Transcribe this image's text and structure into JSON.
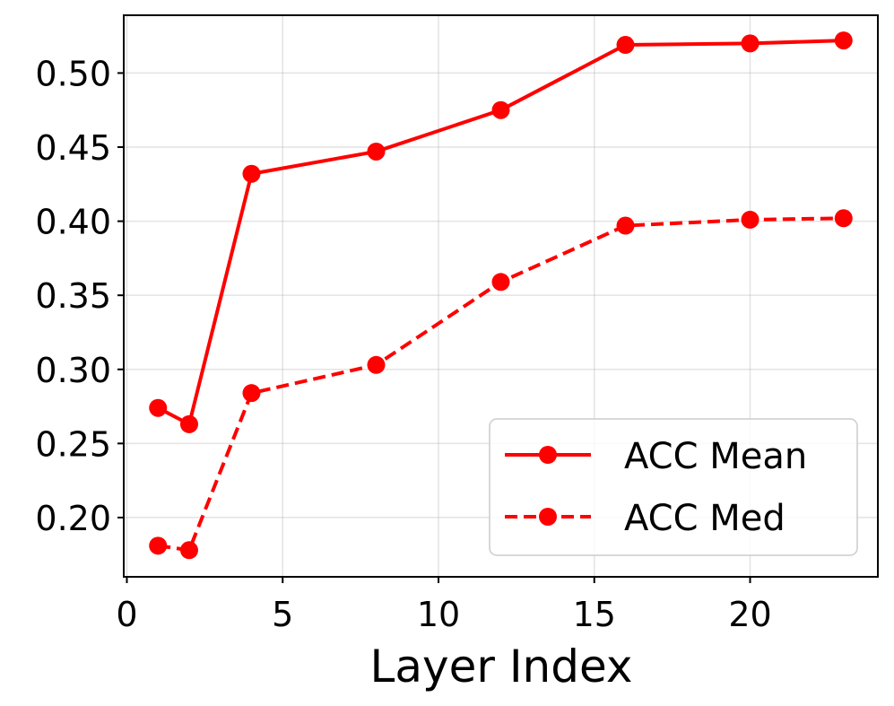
{
  "chart_data": {
    "type": "line",
    "title": "",
    "xlabel": "Layer Index",
    "ylabel": "",
    "xlim": [
      -0.1,
      24.1
    ],
    "ylim": [
      0.16,
      0.539
    ],
    "xticks": [
      0,
      5,
      10,
      15,
      20
    ],
    "xtick_labels": [
      "0",
      "5",
      "10",
      "15",
      "20"
    ],
    "yticks": [
      0.2,
      0.25,
      0.3,
      0.35,
      0.4,
      0.45,
      0.5
    ],
    "ytick_labels": [
      "0.20",
      "0.25",
      "0.30",
      "0.35",
      "0.40",
      "0.45",
      "0.50"
    ],
    "grid": true,
    "legend_position": "bottom-right",
    "x": [
      1,
      2,
      4,
      8,
      12,
      16,
      20,
      23
    ],
    "series": [
      {
        "name": "ACC Mean",
        "values": [
          0.274,
          0.263,
          0.432,
          0.447,
          0.475,
          0.519,
          0.52,
          0.522
        ],
        "color": "#ff0000",
        "line_style": "solid",
        "marker": "circle"
      },
      {
        "name": "ACC Med",
        "values": [
          0.181,
          0.178,
          0.284,
          0.303,
          0.359,
          0.397,
          0.401,
          0.402
        ],
        "color": "#ff0000",
        "line_style": "dashed",
        "marker": "circle"
      }
    ]
  }
}
